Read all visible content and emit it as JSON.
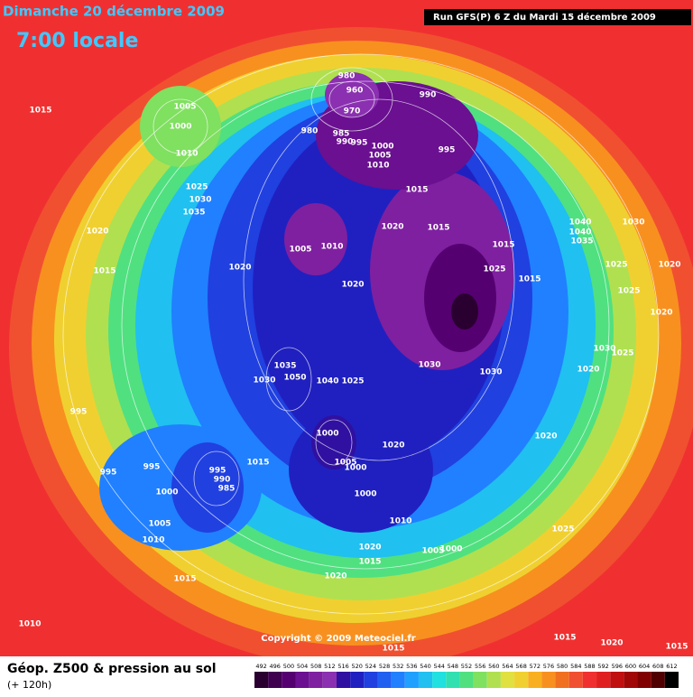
{
  "header": {
    "title": "Dimanche 20 décembre 2009",
    "time": "7:00 locale",
    "run": "Run GFS(P) 6 Z du Mardi 15 décembre 2009"
  },
  "copyright": "Copyright © 2009 Meteociel.fr",
  "footer": {
    "title": "Géop. Z500 & pression au sol",
    "lead": "(+ 120h)"
  },
  "legend": {
    "values": [
      492,
      496,
      500,
      504,
      508,
      512,
      516,
      520,
      524,
      528,
      532,
      536,
      540,
      544,
      548,
      552,
      556,
      560,
      564,
      568,
      572,
      576,
      580,
      584,
      588,
      592,
      596,
      600,
      604,
      608,
      612
    ],
    "colors": [
      "#2a0030",
      "#400050",
      "#550070",
      "#6a1090",
      "#7f20a0",
      "#8a30b0",
      "#3010a0",
      "#2020c0",
      "#2040e0",
      "#2060f0",
      "#2080ff",
      "#20a0ff",
      "#20c0f0",
      "#20e0e0",
      "#30e0b0",
      "#50e080",
      "#80e060",
      "#b0e050",
      "#e0e040",
      "#f0d030",
      "#f8b020",
      "#f89020",
      "#f07020",
      "#f05030",
      "#f03030",
      "#e02020",
      "#c01010",
      "#a00808",
      "#800000",
      "#500000",
      "#000000"
    ]
  },
  "isobar_labels": [
    "1015",
    "1005",
    "1000",
    "1010",
    "1025",
    "1030",
    "1035",
    "1020",
    "1015",
    "1020",
    "980",
    "960",
    "970",
    "980",
    "985",
    "990",
    "995",
    "990",
    "1000",
    "1005",
    "1010",
    "995",
    "1015",
    "1020",
    "1015",
    "1005",
    "1010",
    "1020",
    "1015",
    "1025",
    "1015",
    "1030",
    "1040",
    "1040",
    "1035",
    "1025",
    "1020",
    "1025",
    "1020",
    "1030",
    "1030",
    "1030",
    "1025",
    "1020",
    "1035",
    "1050",
    "1030",
    "1040",
    "1025",
    "995",
    "1000",
    "1020",
    "1005",
    "1000",
    "1020",
    "1015",
    "995",
    "995",
    "995",
    "990",
    "985",
    "1000",
    "1000",
    "1005",
    "1010",
    "1010",
    "1025",
    "1020",
    "1005",
    "1000",
    "1015",
    "1020",
    "1015",
    "1010",
    "1015",
    "1020",
    "1015",
    "1015"
  ]
}
